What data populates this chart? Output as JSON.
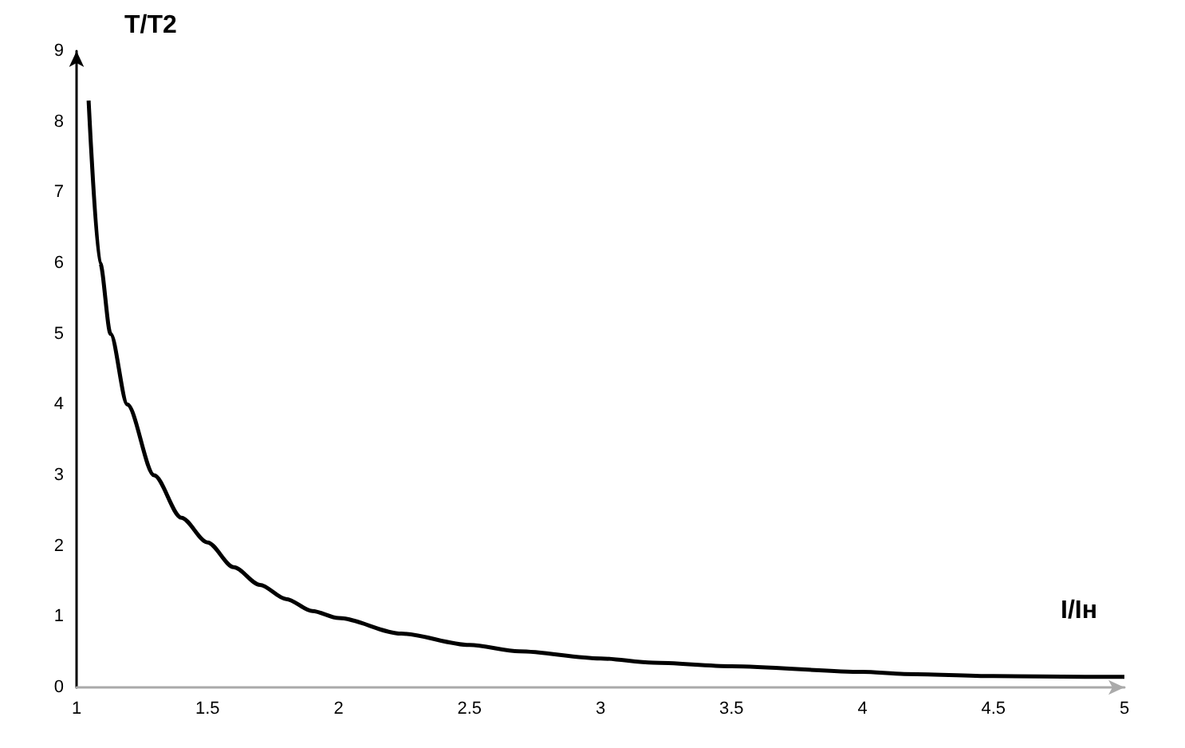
{
  "chart_data": {
    "type": "line",
    "xlabel": "I/Iн",
    "ylabel": "T/T2",
    "series": [
      {
        "color": "#000000",
        "x": [
          1.046,
          1.09,
          1.13,
          1.194,
          1.296,
          1.4,
          1.5,
          1.6,
          1.7,
          1.8,
          1.9,
          2.0,
          2.24,
          2.5,
          2.69,
          3.0,
          3.2,
          3.5,
          4.0,
          4.16,
          4.5,
          4.85,
          5.0
        ],
        "values": [
          8.3,
          6.0,
          5.0,
          4.0,
          3.0,
          2.4,
          2.05,
          1.7,
          1.45,
          1.25,
          1.08,
          0.98,
          0.76,
          0.6,
          0.51,
          0.41,
          0.35,
          0.3,
          0.22,
          0.19,
          0.16,
          0.15,
          0.15
        ]
      }
    ],
    "xlim": [
      1,
      5
    ],
    "xticks": [
      1,
      1.5,
      2,
      2.5,
      3,
      3.5,
      4,
      4.5,
      5
    ],
    "ylim": [
      0,
      9
    ],
    "yticks": [
      0,
      1,
      2,
      3,
      4,
      5,
      6,
      7,
      8,
      9
    ],
    "marker": "none",
    "line_style": "solid"
  }
}
